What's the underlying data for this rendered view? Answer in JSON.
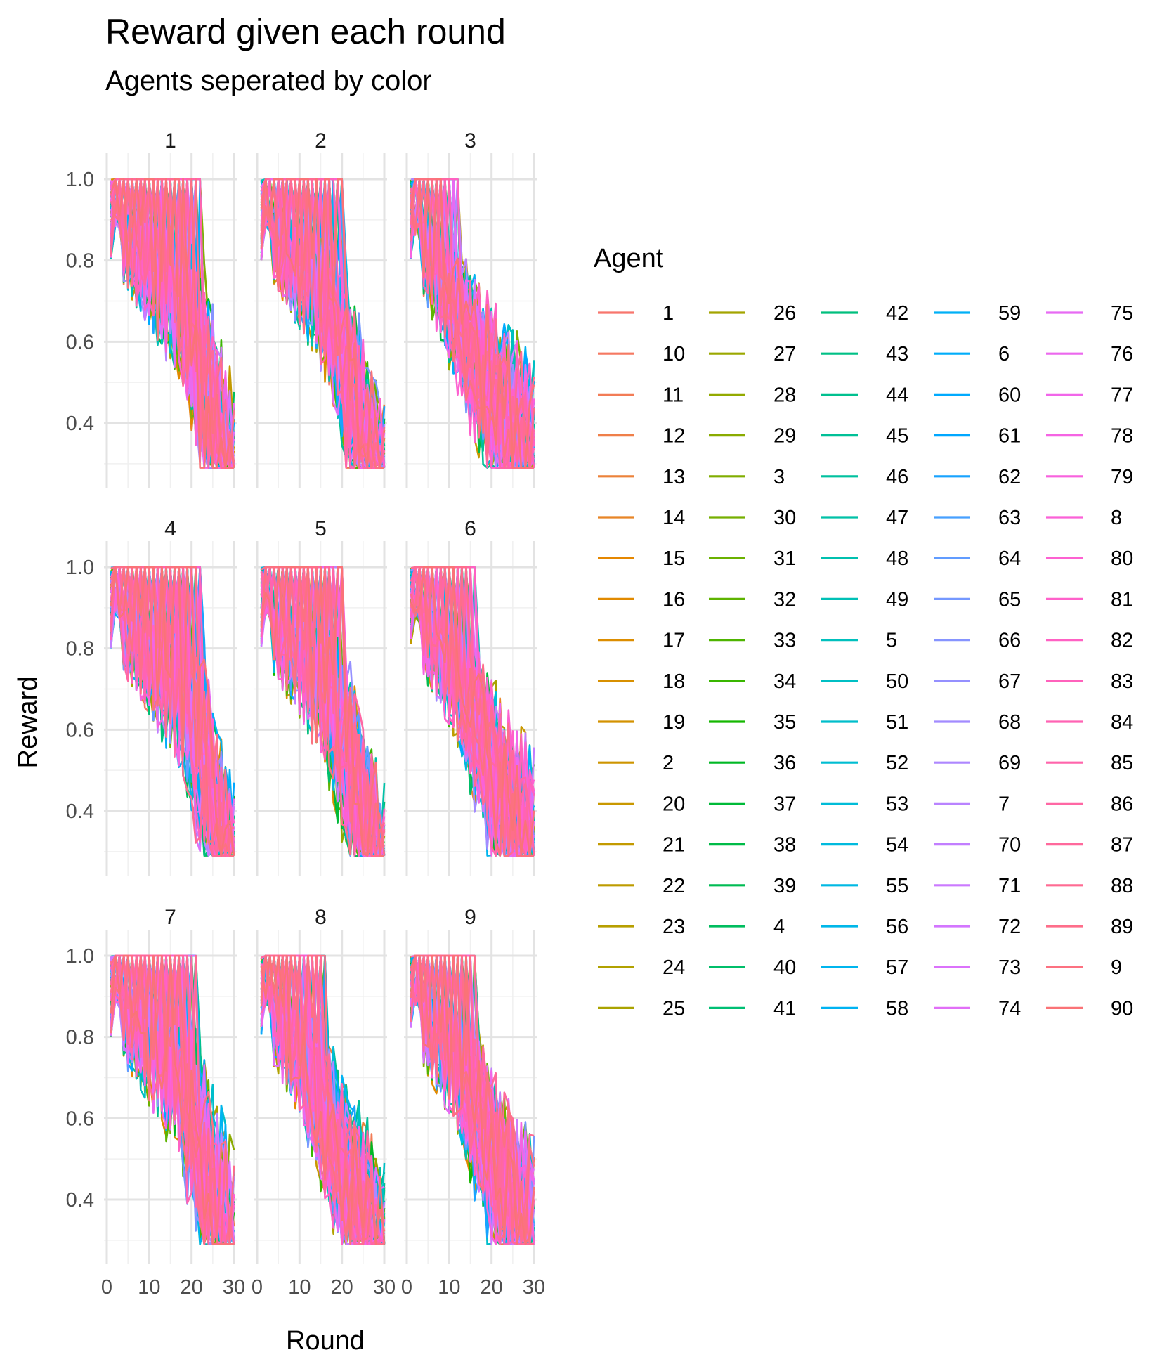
{
  "chart_data": {
    "type": "line",
    "title": "Reward given each round",
    "subtitle": "Agents seperated by color",
    "xlabel": "Round",
    "ylabel": "Reward",
    "xlim": [
      0,
      30
    ],
    "ylim": [
      0.3,
      1.0
    ],
    "x_ticks": [
      "0",
      "10",
      "20",
      "30"
    ],
    "y_ticks": [
      "0.4",
      "0.6",
      "0.8",
      "1.0"
    ],
    "grid": true,
    "legend": {
      "title": "Agent",
      "position": "right"
    },
    "agents": [
      "1",
      "10",
      "11",
      "12",
      "13",
      "14",
      "15",
      "16",
      "17",
      "18",
      "19",
      "2",
      "20",
      "21",
      "22",
      "23",
      "24",
      "25",
      "26",
      "27",
      "28",
      "29",
      "3",
      "30",
      "31",
      "32",
      "33",
      "34",
      "35",
      "36",
      "37",
      "38",
      "39",
      "4",
      "40",
      "41",
      "42",
      "43",
      "44",
      "45",
      "46",
      "47",
      "48",
      "49",
      "5",
      "50",
      "51",
      "52",
      "53",
      "54",
      "55",
      "56",
      "57",
      "58",
      "59",
      "6",
      "60",
      "61",
      "62",
      "63",
      "64",
      "65",
      "66",
      "67",
      "68",
      "69",
      "7",
      "70",
      "71",
      "72",
      "73",
      "74",
      "75",
      "76",
      "77",
      "78",
      "79",
      "8",
      "80",
      "81",
      "82",
      "83",
      "84",
      "85",
      "86",
      "87",
      "88",
      "89",
      "9",
      "90"
    ],
    "panels": [
      {
        "label": "1",
        "end_median": 0.45,
        "end_min": 0.3,
        "drop_round": 20
      },
      {
        "label": "2",
        "end_median": 0.4,
        "end_min": 0.29,
        "drop_round": 18
      },
      {
        "label": "3",
        "end_median": 0.5,
        "end_min": 0.35,
        "drop_round": 10
      },
      {
        "label": "4",
        "end_median": 0.42,
        "end_min": 0.29,
        "drop_round": 20
      },
      {
        "label": "5",
        "end_median": 0.42,
        "end_min": 0.32,
        "drop_round": 18
      },
      {
        "label": "6",
        "end_median": 0.48,
        "end_min": 0.32,
        "drop_round": 14
      },
      {
        "label": "7",
        "end_median": 0.45,
        "end_min": 0.29,
        "drop_round": 19
      },
      {
        "label": "8",
        "end_median": 0.45,
        "end_min": 0.32,
        "drop_round": 14
      },
      {
        "label": "9",
        "end_median": 0.48,
        "end_min": 0.32,
        "drop_round": 14
      }
    ]
  }
}
